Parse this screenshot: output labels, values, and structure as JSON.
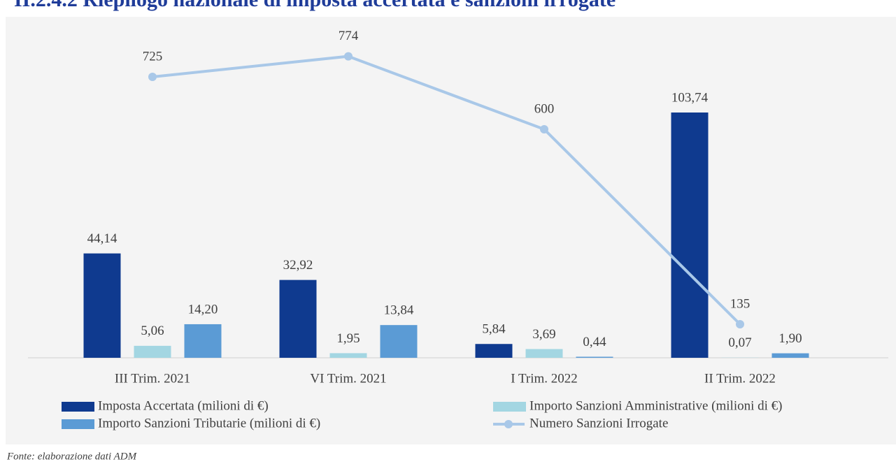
{
  "chart_data": {
    "type": "bar",
    "title": "II.2.4.2 Riepilogo nazionale di imposta accertata e sanzioni irrogate",
    "categories": [
      "III Trim. 2021",
      "VI Trim. 2021",
      "I Trim. 2022",
      "II Trim. 2022"
    ],
    "series": [
      {
        "name": "Imposta Accertata (milioni di €)",
        "color": "#0f3a8f",
        "values": [
          44.14,
          32.92,
          5.84,
          103.74
        ],
        "value_labels": [
          "44,14",
          "32,92",
          "5,84",
          "103,74"
        ]
      },
      {
        "name": "Importo Sanzioni Amministrative (milioni di €)",
        "color": "#a3d6e2",
        "values": [
          5.06,
          1.95,
          3.69,
          0.07
        ],
        "value_labels": [
          "5,06",
          "1,95",
          "3,69",
          "0,07"
        ]
      },
      {
        "name": "Importo Sanzioni Tributarie (milioni di €)",
        "color": "#5b9bd5",
        "values": [
          14.2,
          13.84,
          0.44,
          1.9
        ],
        "value_labels": [
          "14,20",
          "13,84",
          "0,44",
          "1,90"
        ]
      },
      {
        "name": "Numero Sanzioni Irrogate",
        "color": "#a9c8e8",
        "type": "line",
        "axis": "y2",
        "values": [
          725,
          774,
          600,
          135
        ]
      }
    ],
    "ylim": [
      0,
      133
    ],
    "y2lim": [
      55,
      805
    ],
    "source": "Fonte: elaborazione dati ADM"
  }
}
